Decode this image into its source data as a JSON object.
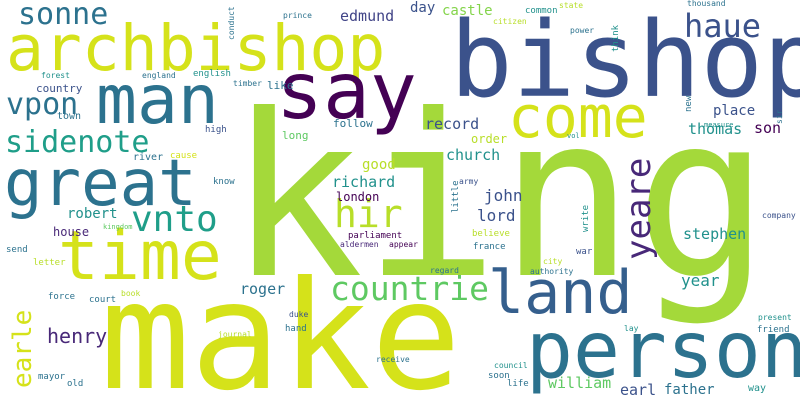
{
  "palette": {
    "lime": "#b8de29",
    "yellow": "#d5e21a",
    "green": "#5ec962",
    "lightgreen": "#84d44b",
    "teal": "#21918c",
    "bluegreen": "#1f9e89",
    "blue": "#3b528b",
    "steel": "#2c728e",
    "purple": "#482878",
    "darkpurple": "#440154",
    "indigo": "#414487"
  },
  "words": [
    {
      "text": "king",
      "color": "#a4d93a",
      "name": "word-king"
    },
    {
      "text": "make",
      "color": "#d5e21a",
      "name": "word-make"
    },
    {
      "text": "bishop",
      "color": "#3b528b",
      "name": "word-bishop"
    },
    {
      "text": "archbishop",
      "color": "#d5e21a",
      "name": "word-archbishop"
    },
    {
      "text": "man",
      "color": "#2c728e",
      "name": "word-man"
    },
    {
      "text": "say",
      "color": "#440154",
      "name": "word-say"
    },
    {
      "text": "person",
      "color": "#2c728e",
      "name": "word-person"
    },
    {
      "text": "land",
      "color": "#355f8d",
      "name": "word-land"
    },
    {
      "text": "time",
      "color": "#d5e21a",
      "name": "word-time"
    },
    {
      "text": "great",
      "color": "#2c728e",
      "name": "word-great"
    },
    {
      "text": "come",
      "color": "#d5e21a",
      "name": "word-come"
    },
    {
      "text": "sonne",
      "color": "#2c728e",
      "name": "word-sonne"
    },
    {
      "text": "haue",
      "color": "#3b528b",
      "name": "word-haue"
    },
    {
      "text": "vpon",
      "color": "#2c728e",
      "name": "word-vpon"
    },
    {
      "text": "sidenote",
      "color": "#1f9e89",
      "name": "word-sidenote"
    },
    {
      "text": "countrie",
      "color": "#5ec962",
      "name": "word-countrie"
    },
    {
      "text": "hir",
      "color": "#b8de29",
      "name": "word-hir"
    },
    {
      "text": "vnto",
      "color": "#1f9e89",
      "name": "word-vnto"
    },
    {
      "text": "yeare",
      "color": "#482878",
      "name": "word-yeare"
    },
    {
      "text": "earle",
      "color": "#d5e21a",
      "name": "word-earle"
    },
    {
      "text": "henry",
      "color": "#482878",
      "name": "word-henry"
    },
    {
      "text": "edmund",
      "color": "#414487",
      "name": "word-edmund"
    },
    {
      "text": "castle",
      "color": "#84d44b",
      "name": "word-castle"
    },
    {
      "text": "day",
      "color": "#3b528b",
      "name": "word-day"
    },
    {
      "text": "record",
      "color": "#3b528b",
      "name": "word-record"
    },
    {
      "text": "church",
      "color": "#21918c",
      "name": "word-church"
    },
    {
      "text": "richard",
      "color": "#21918c",
      "name": "word-richard"
    },
    {
      "text": "thomas",
      "color": "#21918c",
      "name": "word-thomas"
    },
    {
      "text": "son",
      "color": "#440154",
      "name": "word-son"
    },
    {
      "text": "place",
      "color": "#3b528b",
      "name": "word-place"
    },
    {
      "text": "john",
      "color": "#3b528b",
      "name": "word-john"
    },
    {
      "text": "lord",
      "color": "#3b528b",
      "name": "word-lord"
    },
    {
      "text": "london",
      "color": "#440154",
      "name": "word-london"
    },
    {
      "text": "robert",
      "color": "#21918c",
      "name": "word-robert"
    },
    {
      "text": "roger",
      "color": "#2c728e",
      "name": "word-roger"
    },
    {
      "text": "stephen",
      "color": "#21918c",
      "name": "word-stephen"
    },
    {
      "text": "year",
      "color": "#21918c",
      "name": "word-year"
    },
    {
      "text": "william",
      "color": "#5ec962",
      "name": "word-william"
    },
    {
      "text": "earl",
      "color": "#3b528b",
      "name": "word-earl"
    },
    {
      "text": "father",
      "color": "#2c728e",
      "name": "word-father"
    },
    {
      "text": "good",
      "color": "#b8de29",
      "name": "word-good"
    },
    {
      "text": "house",
      "color": "#482878",
      "name": "word-house"
    },
    {
      "text": "country",
      "color": "#3b528b",
      "name": "word-country"
    },
    {
      "text": "town",
      "color": "#2c728e",
      "name": "word-town"
    },
    {
      "text": "like",
      "color": "#2c728e",
      "name": "word-like"
    },
    {
      "text": "follow",
      "color": "#2c728e",
      "name": "word-follow"
    },
    {
      "text": "order",
      "color": "#b8de29",
      "name": "word-order"
    },
    {
      "text": "long",
      "color": "#5ec962",
      "name": "word-long"
    },
    {
      "text": "common",
      "color": "#21918c",
      "name": "word-common"
    },
    {
      "text": "parliament",
      "color": "#440154",
      "name": "word-parliament"
    },
    {
      "text": "english",
      "color": "#21918c",
      "name": "word-english"
    },
    {
      "text": "england",
      "color": "#2c728e",
      "name": "word-england"
    },
    {
      "text": "forest",
      "color": "#21918c",
      "name": "word-forest"
    },
    {
      "text": "high",
      "color": "#3b528b",
      "name": "word-high"
    },
    {
      "text": "river",
      "color": "#2c728e",
      "name": "word-river"
    },
    {
      "text": "cause",
      "color": "#d5e21a",
      "name": "word-cause"
    },
    {
      "text": "know",
      "color": "#2c728e",
      "name": "word-know"
    },
    {
      "text": "send",
      "color": "#2c728e",
      "name": "word-send"
    },
    {
      "text": "letter",
      "color": "#b8de29",
      "name": "word-letter"
    },
    {
      "text": "force",
      "color": "#2c728e",
      "name": "word-force"
    },
    {
      "text": "court",
      "color": "#2c728e",
      "name": "word-court"
    },
    {
      "text": "book",
      "color": "#b8de29",
      "name": "word-book"
    },
    {
      "text": "duke",
      "color": "#3b528b",
      "name": "word-duke"
    },
    {
      "text": "hand",
      "color": "#2c728e",
      "name": "word-hand"
    },
    {
      "text": "journal",
      "color": "#b8de29",
      "name": "word-journal"
    },
    {
      "text": "mayor",
      "color": "#2c728e",
      "name": "word-mayor"
    },
    {
      "text": "old",
      "color": "#2c728e",
      "name": "word-old"
    },
    {
      "text": "receive",
      "color": "#2c728e",
      "name": "word-receive"
    },
    {
      "text": "soon",
      "color": "#2c728e",
      "name": "word-soon"
    },
    {
      "text": "life",
      "color": "#2c728e",
      "name": "word-life"
    },
    {
      "text": "council",
      "color": "#21918c",
      "name": "word-council"
    },
    {
      "text": "aldermen",
      "color": "#482878",
      "name": "word-aldermen"
    },
    {
      "text": "appear",
      "color": "#440154",
      "name": "word-appear"
    },
    {
      "text": "believe",
      "color": "#b8de29",
      "name": "word-believe"
    },
    {
      "text": "france",
      "color": "#2c728e",
      "name": "word-france"
    },
    {
      "text": "war",
      "color": "#3b528b",
      "name": "word-war"
    },
    {
      "text": "city",
      "color": "#b8de29",
      "name": "word-city"
    },
    {
      "text": "authority",
      "color": "#2c728e",
      "name": "word-authority"
    },
    {
      "text": "regard",
      "color": "#2c728e",
      "name": "word-regard"
    },
    {
      "text": "lay",
      "color": "#21918c",
      "name": "word-lay"
    },
    {
      "text": "friend",
      "color": "#2c728e",
      "name": "word-friend"
    },
    {
      "text": "present",
      "color": "#21918c",
      "name": "word-present"
    },
    {
      "text": "company",
      "color": "#3b528b",
      "name": "word-company"
    },
    {
      "text": "way",
      "color": "#21918c",
      "name": "word-way"
    },
    {
      "text": "power",
      "color": "#2c728e",
      "name": "word-power"
    },
    {
      "text": "state",
      "color": "#b8de29",
      "name": "word-state"
    },
    {
      "text": "citizen",
      "color": "#b8de29",
      "name": "word-citizen"
    },
    {
      "text": "prince",
      "color": "#2c728e",
      "name": "word-prince"
    },
    {
      "text": "thousand",
      "color": "#2c728e",
      "name": "word-thousand"
    },
    {
      "text": "measure",
      "color": "#21918c",
      "name": "word-measure"
    },
    {
      "text": "timber",
      "color": "#2c728e",
      "name": "word-timber"
    },
    {
      "text": "army",
      "color": "#3b528b",
      "name": "word-army"
    },
    {
      "text": "kingdom",
      "color": "#5ec962",
      "name": "word-kingdom"
    },
    {
      "text": "conduct",
      "color": "#2c728e",
      "name": "word-conduct"
    },
    {
      "text": "think",
      "color": "#21918c",
      "name": "word-think"
    },
    {
      "text": "new",
      "color": "#2c728e",
      "name": "word-new"
    },
    {
      "text": "write",
      "color": "#21918c",
      "name": "word-write"
    },
    {
      "text": "little",
      "color": "#2c728e",
      "name": "word-little"
    },
    {
      "text": "sir",
      "color": "#2c728e",
      "name": "word-sir"
    },
    {
      "text": "vol",
      "color": "#21918c",
      "name": "word-vol"
    }
  ]
}
